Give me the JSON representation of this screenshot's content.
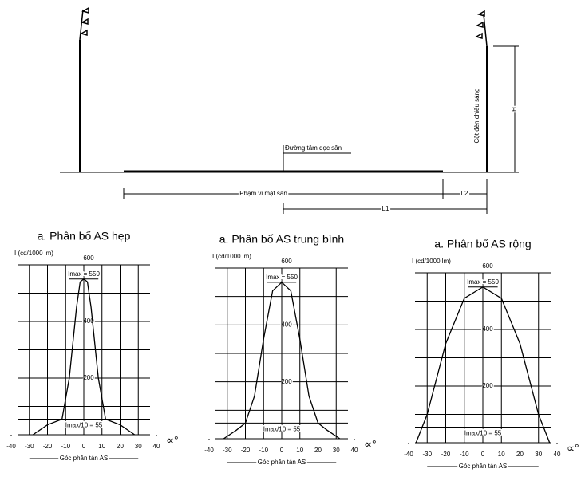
{
  "diagram": {
    "center_line": "Đường tâm dọc sân",
    "field_extent": "Phạm vi mặt sân",
    "l1": "L1",
    "l2": "L2",
    "h": "H",
    "pole": "Cột đèn chiếu sáng"
  },
  "chart_data": [
    {
      "type": "line",
      "title": "a. Phân bố AS hẹp",
      "y_label": "I (cd/1000 lm)",
      "x_label": "Góc phân tán AS",
      "x_unit": "∝°",
      "xlim": [
        -40,
        40
      ],
      "xticks": [
        -40,
        -30,
        -20,
        -10,
        0,
        10,
        20,
        30,
        40
      ],
      "ylim": [
        0,
        600
      ],
      "yticks": [
        200,
        400,
        600
      ],
      "minor_yticks": [
        100,
        300,
        500
      ],
      "annotations": [
        {
          "text": "Imax = 550",
          "y": 550
        },
        {
          "text": "Imax/10 = 55",
          "y": 55
        }
      ],
      "series": [
        {
          "name": "hẹp",
          "color": "#000000",
          "x": [
            -28,
            -20,
            -12,
            -8,
            -4,
            -2,
            0,
            2,
            4,
            8,
            12,
            20,
            28
          ],
          "values": [
            0,
            35,
            55,
            200,
            450,
            540,
            550,
            540,
            450,
            200,
            55,
            35,
            0
          ]
        }
      ]
    },
    {
      "type": "line",
      "title": "a. Phân bố AS trung bình",
      "y_label": "I (cd/1000 lm)",
      "x_label": "Góc phân tán AS",
      "x_unit": "∝°",
      "xlim": [
        -40,
        40
      ],
      "xticks": [
        -40,
        -30,
        -20,
        -10,
        0,
        10,
        20,
        30,
        40
      ],
      "ylim": [
        0,
        600
      ],
      "yticks": [
        200,
        400,
        600
      ],
      "minor_yticks": [
        100,
        300,
        500
      ],
      "annotations": [
        {
          "text": "Imax = 550",
          "y": 550
        },
        {
          "text": "Imax/10 = 55",
          "y": 55
        }
      ],
      "series": [
        {
          "name": "trung bình",
          "color": "#000000",
          "x": [
            -32,
            -25,
            -20,
            -15,
            -10,
            -5,
            0,
            5,
            10,
            15,
            20,
            25,
            32
          ],
          "values": [
            0,
            30,
            55,
            150,
            350,
            520,
            550,
            520,
            350,
            150,
            55,
            30,
            0
          ]
        }
      ]
    },
    {
      "type": "line",
      "title": "a. Phân bố AS rộng",
      "y_label": "I (cd/1000 lm)",
      "x_label": "Góc phân tán AS",
      "x_unit": "∝°",
      "xlim": [
        -40,
        40
      ],
      "xticks": [
        -40,
        -30,
        -20,
        -10,
        0,
        10,
        20,
        30,
        40
      ],
      "ylim": [
        0,
        600
      ],
      "yticks": [
        200,
        400,
        600
      ],
      "minor_yticks": [
        100,
        300,
        500
      ],
      "annotations": [
        {
          "text": "Imax = 550",
          "y": 550
        },
        {
          "text": "Imax/10 = 55",
          "y": 55
        }
      ],
      "series": [
        {
          "name": "rộng",
          "color": "#000000",
          "x": [
            -36,
            -30,
            -20,
            -10,
            0,
            10,
            20,
            30,
            36
          ],
          "values": [
            0,
            100,
            350,
            510,
            550,
            510,
            350,
            100,
            0
          ]
        }
      ]
    }
  ]
}
